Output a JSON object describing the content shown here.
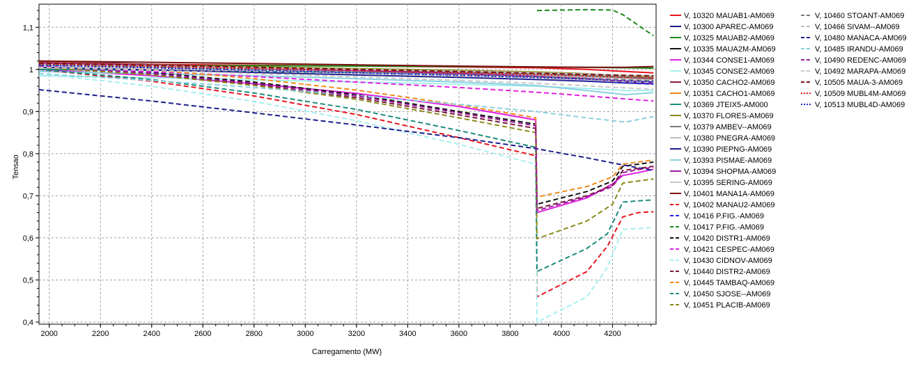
{
  "chart_data": {
    "type": "line",
    "title": "",
    "xlabel": "Carregamento (MW)",
    "ylabel": "Tensao",
    "xlim": [
      1960,
      4370
    ],
    "ylim": [
      0.395,
      1.155
    ],
    "xticks": [
      "2000",
      "2200",
      "2400",
      "2600",
      "2800",
      "3000",
      "3200",
      "3400",
      "3600",
      "3800",
      "4000",
      "4200"
    ],
    "xtick_values": [
      2000,
      2200,
      2400,
      2600,
      2800,
      3000,
      3200,
      3400,
      3600,
      3800,
      4000,
      4200
    ],
    "yticks": [
      "0,4",
      "0,5",
      "0,6",
      "0,7",
      "0,8",
      "0,9",
      "1",
      "1,1"
    ],
    "ytick_values": [
      0.4,
      0.5,
      0.6,
      0.7,
      0.8,
      0.9,
      1.0,
      1.1
    ],
    "grid": true,
    "legend_position": "right",
    "series": [
      {
        "name": "V, 10320 MAUAB1-AM069",
        "color": "#e8141e",
        "dash": "solid",
        "x": [
          1960,
          2400,
          2800,
          3200,
          3600,
          3900,
          4100,
          4250,
          4360
        ],
        "y": [
          1.015,
          1.012,
          1.01,
          1.008,
          1.006,
          1.004,
          1.0,
          0.995,
          0.992
        ]
      },
      {
        "name": "V, 10300 APAREC-AM069",
        "color": "#1c1c8c",
        "dash": "solid",
        "x": [
          1960,
          2400,
          2800,
          3200,
          3600,
          3900,
          4100,
          4250,
          4360
        ],
        "y": [
          1.02,
          1.012,
          1.005,
          0.997,
          0.99,
          0.983,
          0.977,
          0.972,
          0.97
        ]
      },
      {
        "name": "V, 10325 MAUAB2-AM069",
        "color": "#1a8a1a",
        "dash": "solid",
        "x": [
          1960,
          2400,
          2800,
          3200,
          3600,
          3900,
          4100,
          4250,
          4360
        ],
        "y": [
          1.01,
          1.01,
          1.009,
          1.008,
          1.007,
          1.006,
          1.005,
          1.004,
          1.003
        ]
      },
      {
        "name": "V, 10335 MAUA2M-AM069",
        "color": "#111111",
        "dash": "solid",
        "x": [
          1960,
          2400,
          2800,
          3200,
          3600,
          3900,
          4100,
          4250,
          4360
        ],
        "y": [
          1.012,
          1.006,
          1.001,
          0.996,
          0.991,
          0.987,
          0.984,
          0.982,
          0.981
        ]
      },
      {
        "name": "V, 10344 CONSE1-AM069",
        "color": "#e020e0",
        "dash": "solid",
        "x": [
          1960,
          2400,
          2800,
          3200,
          3600,
          3900,
          3905,
          4100,
          4200,
          4240,
          4300,
          4360
        ],
        "y": [
          1.0,
          0.985,
          0.966,
          0.943,
          0.912,
          0.88,
          0.66,
          0.695,
          0.728,
          0.748,
          0.755,
          0.763
        ]
      },
      {
        "name": "V, 10345 CONSE2-AM069",
        "color": "#a6eeee",
        "dash": "solid",
        "x": [
          1960,
          2400,
          2800,
          3200,
          3600,
          3900,
          4100,
          4250,
          4360
        ],
        "y": [
          0.985,
          0.98,
          0.975,
          0.97,
          0.965,
          0.96,
          0.955,
          0.95,
          0.95
        ]
      },
      {
        "name": "V, 10350 CACHO2-AM069",
        "color": "#8a1a3a",
        "dash": "solid",
        "x": [
          1960,
          2400,
          2800,
          3200,
          3600,
          3900,
          4100,
          4250,
          4360
        ],
        "y": [
          1.018,
          1.012,
          1.006,
          1.0,
          0.994,
          0.989,
          0.985,
          0.98,
          0.978
        ]
      },
      {
        "name": "V, 10351 CACHO1-AM069",
        "color": "#f08a1a",
        "dash": "solid",
        "x": [
          1960,
          2400,
          2800,
          3200,
          3600,
          3900,
          4100,
          4250,
          4360
        ],
        "y": [
          1.017,
          1.011,
          1.004,
          0.998,
          0.991,
          0.985,
          0.978,
          0.97,
          0.966
        ]
      },
      {
        "name": "V, 10369 JTEIX5-AM000",
        "color": "#1a8a7a",
        "dash": "solid",
        "x": [
          1960,
          2400,
          2800,
          3200,
          3600,
          3900,
          4100,
          4250,
          4360
        ],
        "y": [
          1.0,
          0.998,
          0.995,
          0.993,
          0.99,
          0.988,
          0.985,
          0.982,
          0.98
        ]
      },
      {
        "name": "V, 10370 FLORES-AM069",
        "color": "#8a8a1a",
        "dash": "solid",
        "x": [
          1960,
          2400,
          2800,
          3200,
          3600,
          3900,
          4100,
          4250,
          4360
        ],
        "y": [
          1.014,
          1.01,
          1.006,
          1.002,
          0.998,
          0.994,
          0.99,
          0.985,
          0.982
        ]
      },
      {
        "name": "V, 10379 AMBEV--AM069",
        "color": "#7a7a7a",
        "dash": "solid",
        "x": [
          1960,
          2400,
          2800,
          3200,
          3600,
          3900,
          4100,
          4250,
          4360
        ],
        "y": [
          1.013,
          1.008,
          1.003,
          0.998,
          0.993,
          0.989,
          0.985,
          0.982,
          0.98
        ]
      },
      {
        "name": "V, 10380 PNEGRA-AM069",
        "color": "#c0c0c0",
        "dash": "solid",
        "x": [
          1960,
          2400,
          2800,
          3200,
          3600,
          3900,
          4100,
          4250,
          4360
        ],
        "y": [
          1.01,
          1.005,
          1.0,
          0.995,
          0.99,
          0.986,
          0.982,
          0.978,
          0.975
        ]
      },
      {
        "name": "V, 10390 PIEPNG-AM069",
        "color": "#1c1c8c",
        "dash": "solid",
        "x": [
          1960,
          2400,
          2800,
          3200,
          3600,
          3900,
          4100,
          4250,
          4360
        ],
        "y": [
          1.005,
          0.999,
          0.993,
          0.987,
          0.981,
          0.976,
          0.972,
          0.968,
          0.966
        ]
      },
      {
        "name": "V, 10393 PISMAE-AM069",
        "color": "#8ad0e0",
        "dash": "solid",
        "x": [
          1960,
          2400,
          2800,
          3200,
          3600,
          3900,
          4100,
          4250,
          4360
        ],
        "y": [
          0.995,
          0.99,
          0.985,
          0.978,
          0.97,
          0.962,
          0.95,
          0.94,
          0.945
        ]
      },
      {
        "name": "V, 10394 SHOPMA-AM069",
        "color": "#9a1a9a",
        "dash": "solid",
        "x": [
          1960,
          2400,
          2800,
          3200,
          3600,
          3900,
          4100,
          4250,
          4360
        ],
        "y": [
          1.016,
          1.01,
          1.003,
          0.997,
          0.99,
          0.984,
          0.978,
          0.972,
          0.968
        ]
      },
      {
        "name": "V, 10395 SERING-AM069",
        "color": "#c8c8c8",
        "dash": "solid",
        "x": [
          1960,
          2400,
          2800,
          3200,
          3600,
          3900,
          4100,
          4250,
          4360
        ],
        "y": [
          1.012,
          1.008,
          1.004,
          1.0,
          0.996,
          0.992,
          0.989,
          0.986,
          0.985
        ]
      },
      {
        "name": "V, 10401 MANA1A-AM069",
        "color": "#7a1010",
        "dash": "solid",
        "x": [
          1960,
          2400,
          2800,
          3200,
          3600,
          3900,
          4100,
          4250,
          4360
        ],
        "y": [
          1.02,
          1.017,
          1.014,
          1.011,
          1.008,
          1.006,
          1.005,
          1.005,
          1.007
        ]
      },
      {
        "name": "V, 10402 MANAU2-AM069",
        "color": "#e8141e",
        "dash": "dash",
        "x": [
          1960,
          2400,
          2800,
          3200,
          3600,
          3900,
          3905,
          4100,
          4180,
          4240,
          4300,
          4360
        ],
        "y": [
          1.0,
          0.972,
          0.937,
          0.893,
          0.838,
          0.795,
          0.46,
          0.52,
          0.58,
          0.65,
          0.66,
          0.662
        ]
      },
      {
        "name": "V, 10416 P.FIG.-AM069",
        "color": "#2222dd",
        "dash": "dash",
        "x": [
          1960,
          2400,
          2800,
          3200,
          3600,
          3900,
          4100,
          4250,
          4360
        ],
        "y": [
          1.01,
          1.004,
          0.998,
          0.992,
          0.986,
          0.98,
          0.974,
          0.968,
          0.965
        ]
      },
      {
        "name": "V, 10417 P.FIG.-AM069",
        "color": "#1a8a1a",
        "dash": "dash",
        "x": [
          3905,
          4000,
          4100,
          4200,
          4240,
          4300,
          4360
        ],
        "y": [
          1.14,
          1.141,
          1.142,
          1.141,
          1.13,
          1.105,
          1.08
        ]
      },
      {
        "name": "V, 10420 DISTR1-AM069",
        "color": "#111111",
        "dash": "dash",
        "x": [
          1960,
          2400,
          2800,
          3200,
          3600,
          3900,
          3905,
          4100,
          4200,
          4240,
          4300,
          4360
        ],
        "y": [
          1.01,
          0.993,
          0.97,
          0.94,
          0.9,
          0.87,
          0.68,
          0.71,
          0.735,
          0.77,
          0.775,
          0.78
        ]
      },
      {
        "name": "V, 10421 CESPEC-AM069",
        "color": "#e020e0",
        "dash": "dash",
        "x": [
          1960,
          2400,
          2800,
          3200,
          3600,
          3900,
          4100,
          4250,
          4360
        ],
        "y": [
          1.005,
          0.995,
          0.983,
          0.97,
          0.957,
          0.946,
          0.937,
          0.93,
          0.925
        ]
      },
      {
        "name": "V, 10430 CIDNOV-AM069",
        "color": "#a6eeee",
        "dash": "dash",
        "x": [
          1960,
          2400,
          2800,
          3200,
          3600,
          3900,
          3905,
          4100,
          4180,
          4240,
          4300,
          4360
        ],
        "y": [
          0.99,
          0.96,
          0.924,
          0.878,
          0.822,
          0.775,
          0.4,
          0.46,
          0.53,
          0.62,
          0.622,
          0.625
        ]
      },
      {
        "name": "V, 10440 DISTR2-AM069",
        "color": "#7a1a3a",
        "dash": "dash",
        "x": [
          1960,
          2400,
          2800,
          3200,
          3600,
          3900,
          3905,
          4100,
          4200,
          4240,
          4300,
          4360
        ],
        "y": [
          1.005,
          0.988,
          0.964,
          0.933,
          0.892,
          0.86,
          0.67,
          0.7,
          0.725,
          0.76,
          0.765,
          0.77
        ]
      },
      {
        "name": "V, 10445 TAMBAQ-AM069",
        "color": "#f08a1a",
        "dash": "dash",
        "x": [
          1960,
          2400,
          2800,
          3200,
          3600,
          3900,
          3905,
          4100,
          4200,
          4240,
          4300,
          4360
        ],
        "y": [
          1.015,
          0.999,
          0.978,
          0.951,
          0.916,
          0.885,
          0.697,
          0.722,
          0.745,
          0.775,
          0.78,
          0.785
        ]
      },
      {
        "name": "V, 10450 SJOSE--AM069",
        "color": "#1a8a7a",
        "dash": "dash",
        "x": [
          1960,
          2400,
          2800,
          3200,
          3600,
          3900,
          3905,
          4100,
          4180,
          4240,
          4300,
          4360
        ],
        "y": [
          1.0,
          0.976,
          0.944,
          0.905,
          0.855,
          0.815,
          0.52,
          0.575,
          0.61,
          0.685,
          0.688,
          0.69
        ]
      },
      {
        "name": "V, 10451 PLACIB-AM069",
        "color": "#8a8a1a",
        "dash": "dash",
        "x": [
          1960,
          2400,
          2800,
          3200,
          3600,
          3900,
          3905,
          4100,
          4200,
          4240,
          4300,
          4360
        ],
        "y": [
          1.005,
          0.987,
          0.962,
          0.929,
          0.885,
          0.85,
          0.598,
          0.64,
          0.68,
          0.73,
          0.735,
          0.74
        ]
      },
      {
        "name": "V, 10460 STOANT-AM069",
        "color": "#7a7a7a",
        "dash": "dash",
        "x": [
          1960,
          2400,
          2800,
          3200,
          3600,
          3900,
          4100,
          4250,
          4360
        ],
        "y": [
          1.012,
          1.006,
          1.0,
          0.994,
          0.988,
          0.983,
          0.979,
          0.975,
          0.973
        ]
      },
      {
        "name": "V, 10466 SIVAM--AM069",
        "color": "#c0c0c0",
        "dash": "dash",
        "x": [
          1960,
          2400,
          2800,
          3200,
          3600,
          3900,
          4100,
          4250,
          4360
        ],
        "y": [
          1.008,
          1.002,
          0.996,
          0.99,
          0.984,
          0.979,
          0.975,
          0.971,
          0.969
        ]
      },
      {
        "name": "V, 10480 MANACA-AM069",
        "color": "#1c1c8c",
        "dash": "dash",
        "x": [
          1960,
          2400,
          2800,
          3200,
          3600,
          3900,
          4100,
          4250,
          4360
        ],
        "y": [
          0.952,
          0.925,
          0.897,
          0.868,
          0.838,
          0.812,
          0.79,
          0.772,
          0.76
        ]
      },
      {
        "name": "V, 10485 IRANDU-AM069",
        "color": "#8ad0e0",
        "dash": "dash",
        "x": [
          1960,
          2400,
          2800,
          3200,
          3600,
          3900,
          4100,
          4250,
          4360
        ],
        "y": [
          0.99,
          0.974,
          0.957,
          0.938,
          0.917,
          0.9,
          0.885,
          0.875,
          0.888
        ]
      },
      {
        "name": "V, 10490 REDENC-AM069",
        "color": "#9a1a9a",
        "dash": "dash",
        "x": [
          1960,
          2400,
          2800,
          3200,
          3600,
          3900,
          3905,
          4100,
          4200,
          4240,
          4300,
          4360
        ],
        "y": [
          1.008,
          0.991,
          0.967,
          0.937,
          0.897,
          0.866,
          0.665,
          0.698,
          0.722,
          0.755,
          0.762,
          0.768
        ]
      },
      {
        "name": "V, 10492 MARAPA-AM069",
        "color": "#c8c8c8",
        "dash": "dash",
        "x": [
          1960,
          2400,
          2800,
          3200,
          3600,
          3900,
          4100,
          4250,
          4360
        ],
        "y": [
          1.005,
          0.998,
          0.99,
          0.982,
          0.974,
          0.967,
          0.961,
          0.956,
          0.953
        ]
      },
      {
        "name": "V, 10505 MAUA-3-AM069",
        "color": "#7a1010",
        "dash": "dash",
        "x": [
          1960,
          2400,
          2800,
          3200,
          3600,
          3900,
          4100,
          4250,
          4360
        ],
        "y": [
          1.015,
          1.01,
          1.005,
          1.0,
          0.995,
          0.991,
          0.988,
          0.986,
          0.985
        ]
      },
      {
        "name": "V, 10509 MUBL4M-AM069",
        "color": "#e8141e",
        "dash": "dot",
        "x": [
          1960,
          2400,
          2800,
          3200,
          3600,
          3900,
          4100,
          4250,
          4360
        ],
        "y": [
          1.012,
          1.007,
          1.002,
          0.997,
          0.992,
          0.988,
          0.984,
          0.981,
          0.98
        ]
      },
      {
        "name": "V, 10513 MUBL4D-AM069",
        "color": "#2222dd",
        "dash": "dot",
        "x": [
          1960,
          2400,
          2800,
          3200,
          3600,
          3900,
          4100,
          4250,
          4360
        ],
        "y": [
          1.01,
          1.004,
          0.998,
          0.992,
          0.986,
          0.981,
          0.977,
          0.973,
          0.971
        ]
      }
    ]
  }
}
